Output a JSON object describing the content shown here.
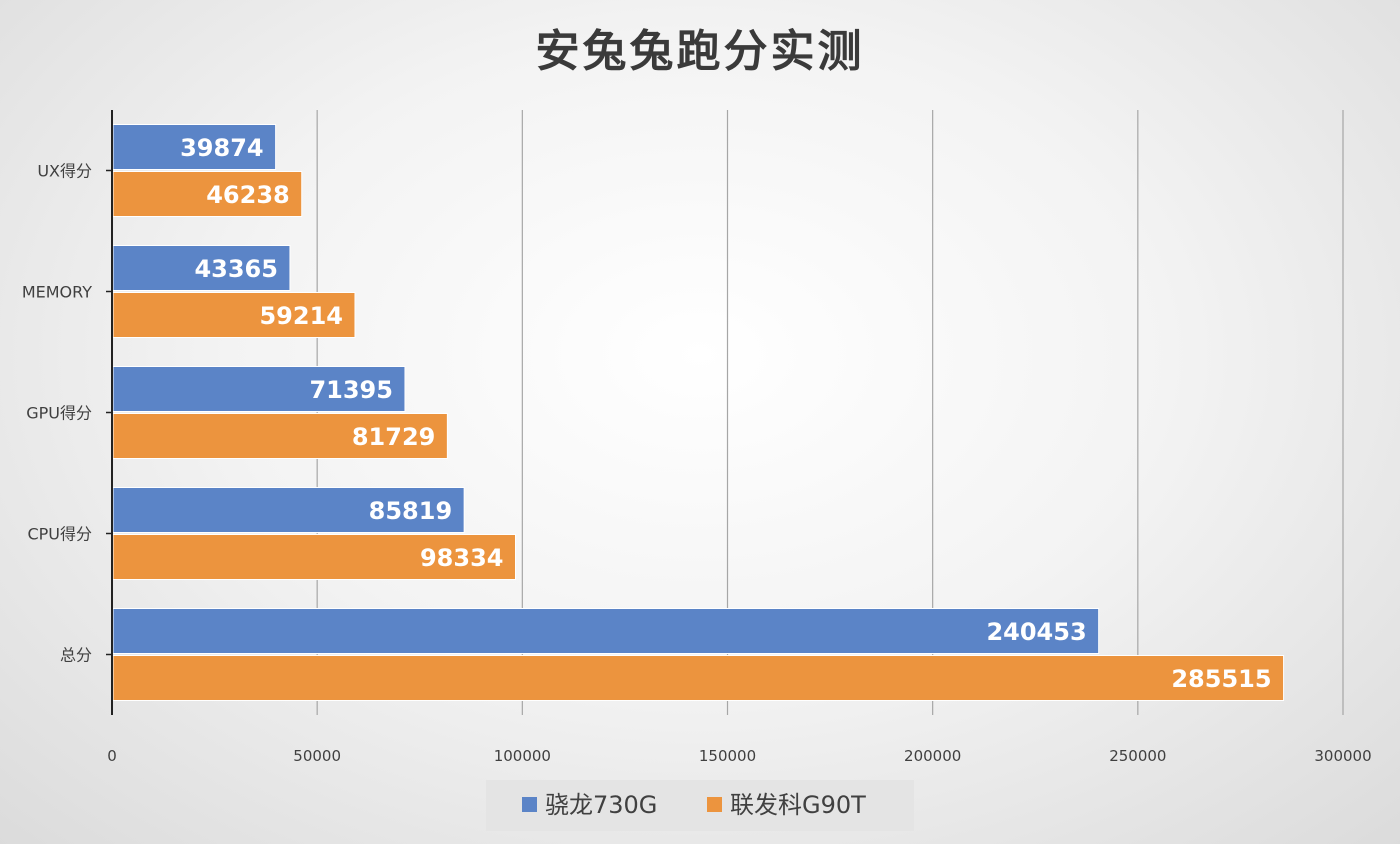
{
  "chart_data": {
    "type": "bar",
    "orientation": "horizontal",
    "title": "安兔兔跑分实测",
    "categories": [
      "UX得分",
      "MEMORY",
      "GPU得分",
      "CPU得分",
      "总分"
    ],
    "series": [
      {
        "name": "骁龙730G",
        "color": "#5b84c7",
        "values": [
          39874,
          43365,
          71395,
          85819,
          240453
        ]
      },
      {
        "name": "联发科G90T",
        "color": "#ec943e",
        "values": [
          46238,
          59214,
          81729,
          98334,
          285515
        ]
      }
    ],
    "xlim": [
      0,
      300000
    ],
    "xticks": [
      0,
      50000,
      100000,
      150000,
      200000,
      250000,
      300000
    ],
    "xtick_labels": [
      "0",
      "50000",
      "100000",
      "150000",
      "200000",
      "250000",
      "300000"
    ],
    "xlabel": "",
    "ylabel": "",
    "grid": "vertical",
    "legend_position": "bottom"
  }
}
